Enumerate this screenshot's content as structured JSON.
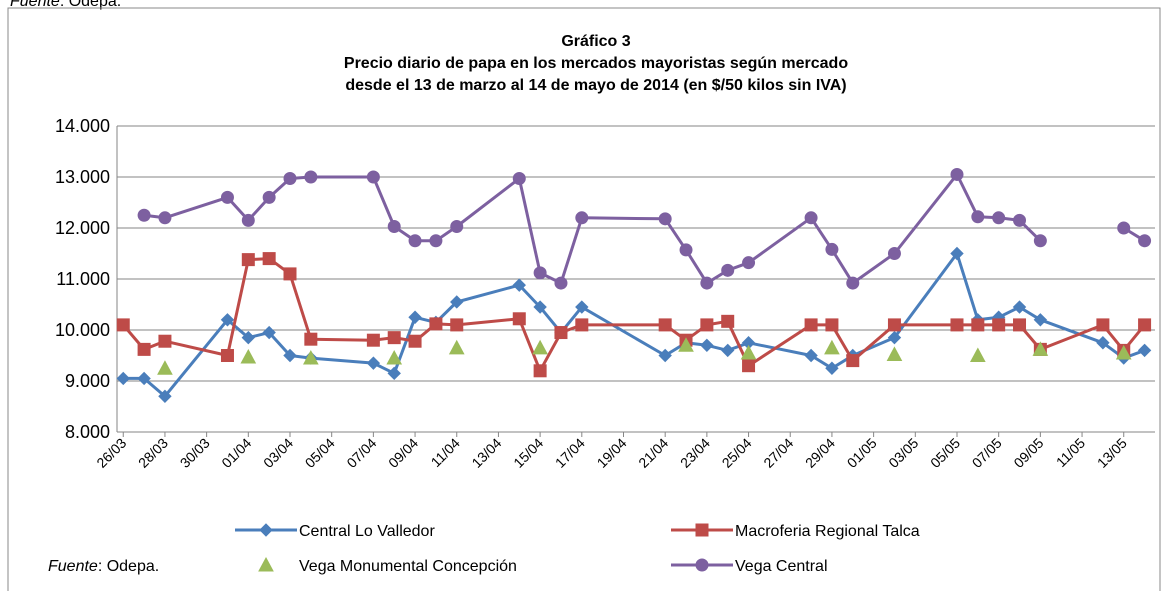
{
  "chart_data": {
    "type": "line",
    "source": {
      "label": "Fuente",
      "text": ": Odepa."
    },
    "title": [
      "Gráfico 3",
      "Precio diario de papa en los mercados mayoristas según mercado",
      "desde el 13 de marzo al 14 de mayo de 2014 (en $/50 kilos sin IVA)"
    ],
    "x": [
      "26/03",
      "27/03",
      "28/03",
      "31/03",
      "01/04",
      "02/04",
      "03/04",
      "04/04",
      "07/04",
      "08/04",
      "09/04",
      "10/04",
      "11/04",
      "14/04",
      "15/04",
      "16/04",
      "17/04",
      "21/04",
      "22/04",
      "23/04",
      "24/04",
      "25/04",
      "28/04",
      "29/04",
      "30/04",
      "02/05",
      "05/05",
      "06/05",
      "07/05",
      "08/05",
      "09/05",
      "12/05",
      "13/05",
      "14/05"
    ],
    "xticks": [
      "26/03",
      "28/03",
      "30/03",
      "01/04",
      "03/04",
      "05/04",
      "07/04",
      "09/04",
      "11/04",
      "13/04",
      "15/04",
      "17/04",
      "19/04",
      "21/04",
      "23/04",
      "25/04",
      "27/04",
      "29/04",
      "01/05",
      "03/05",
      "05/05",
      "07/05",
      "09/05",
      "11/05",
      "13/05"
    ],
    "ylim": [
      8000,
      14000
    ],
    "yticks": [
      {
        "value": 8000,
        "label": "8.000"
      },
      {
        "value": 9000,
        "label": "9.000"
      },
      {
        "value": 10000,
        "label": "10.000"
      },
      {
        "value": 11000,
        "label": "11.000"
      },
      {
        "value": 12000,
        "label": "12.000"
      },
      {
        "value": 13000,
        "label": "13.000"
      },
      {
        "value": 14000,
        "label": "14.000"
      }
    ],
    "grid": true,
    "legend": "bottom",
    "series": [
      {
        "name": "Central Lo Valledor",
        "color": "#4a7ebb",
        "marker": "diamond",
        "line": true,
        "values": [
          9050,
          9050,
          8700,
          10200,
          9850,
          9950,
          9500,
          9450,
          9350,
          9150,
          10250,
          10150,
          10550,
          10880,
          10450,
          9950,
          10450,
          9500,
          9750,
          9700,
          9600,
          9750,
          9500,
          9250,
          9500,
          9850,
          11500,
          10200,
          10250,
          10450,
          10200,
          9750,
          9450,
          9600
        ]
      },
      {
        "name": "Macroferia Regional Talca",
        "color": "#be4b48",
        "marker": "square",
        "line": true,
        "values": [
          10100,
          9620,
          9780,
          9500,
          11380,
          11400,
          11100,
          9820,
          9800,
          9850,
          9780,
          10120,
          10100,
          10220,
          9200,
          9950,
          10100,
          10100,
          9800,
          10100,
          10170,
          9300,
          10100,
          10100,
          9400,
          10100,
          10100,
          10100,
          10100,
          10100,
          9620,
          10100,
          9600,
          10100
        ]
      },
      {
        "name": "Vega Monumental Concepción",
        "color": "#9bbb59",
        "marker": "triangle",
        "line": false,
        "values": [
          null,
          null,
          9250,
          null,
          9470,
          null,
          null,
          9450,
          null,
          9450,
          null,
          null,
          9650,
          null,
          9650,
          null,
          null,
          null,
          9700,
          null,
          null,
          9550,
          null,
          9650,
          null,
          9520,
          null,
          9500,
          null,
          null,
          9620,
          null,
          9550,
          null
        ]
      },
      {
        "name": "Vega Central",
        "color": "#7d60a0",
        "marker": "circle",
        "line": true,
        "values": [
          null,
          12250,
          12200,
          12600,
          12150,
          12600,
          12970,
          13000,
          13000,
          12030,
          11750,
          11750,
          12030,
          12970,
          11120,
          10920,
          12200,
          12180,
          11570,
          10920,
          11170,
          11320,
          12200,
          11580,
          10920,
          11500,
          13050,
          12220,
          12200,
          12150,
          11750,
          null,
          12000,
          11750
        ]
      }
    ]
  }
}
